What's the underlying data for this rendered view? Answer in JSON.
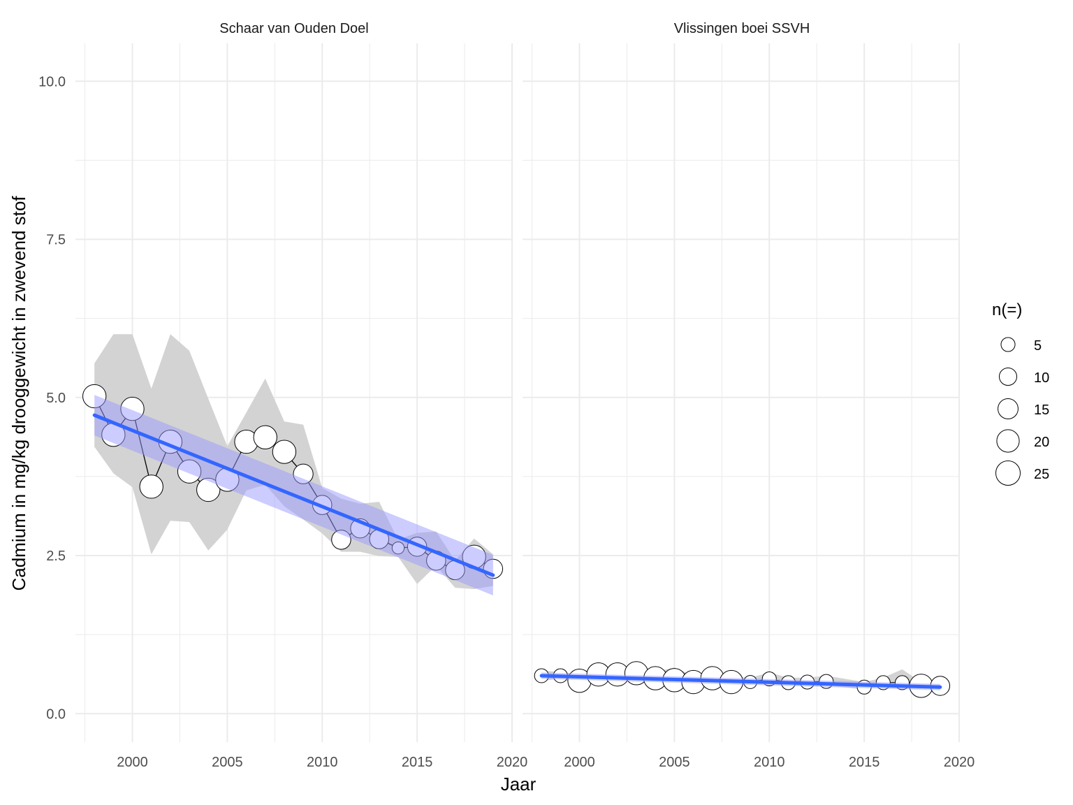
{
  "chart_data": {
    "type": "scatter",
    "xlabel": "Jaar",
    "ylabel": "Cadmium in mg/kg drooggewicht in zwevend stof",
    "xlim": [
      1997,
      2020
    ],
    "ylim": [
      -0.45,
      10.6
    ],
    "x_ticks": [
      "2000",
      "2005",
      "2010",
      "2015",
      "2020"
    ],
    "y_ticks": [
      "0.0",
      "2.5",
      "5.0",
      "7.5",
      "10.0"
    ],
    "grid": true,
    "colors": {
      "trend": "#3366ff",
      "trend_band": "#9999ff",
      "range_band": "#d3d3d3",
      "point_fill": "#ffffff",
      "point_stroke": "#000000",
      "line": "#000000",
      "grid": "#ebebeb"
    },
    "legend": {
      "title": "n(=)",
      "position": "right",
      "items": [
        {
          "label": "5",
          "n": 5
        },
        {
          "label": "10",
          "n": 10
        },
        {
          "label": "15",
          "n": 15
        },
        {
          "label": "20",
          "n": 20
        },
        {
          "label": "25",
          "n": 25
        }
      ]
    },
    "panels": [
      {
        "title": "Schaar van Ouden Doel",
        "x": [
          1998,
          1999,
          2000,
          2001,
          2002,
          2003,
          2004,
          2005,
          2006,
          2007,
          2008,
          2009,
          2010,
          2011,
          2012,
          2013,
          2014,
          2015,
          2016,
          2017,
          2018,
          2019
        ],
        "y": [
          5.02,
          4.41,
          4.82,
          3.59,
          4.3,
          3.83,
          3.54,
          3.7,
          4.3,
          4.37,
          4.14,
          3.79,
          3.3,
          2.75,
          2.93,
          2.76,
          2.62,
          2.64,
          2.42,
          2.27,
          2.48,
          2.29
        ],
        "n": [
          22,
          22,
          22,
          22,
          22,
          22,
          22,
          22,
          22,
          22,
          22,
          14,
          13,
          13,
          13,
          13,
          3,
          13,
          13,
          13,
          22,
          13
        ],
        "band_low": [
          4.22,
          3.8,
          3.58,
          2.52,
          3.05,
          3.03,
          2.58,
          2.91,
          3.53,
          3.62,
          3.28,
          3.07,
          2.85,
          2.56,
          2.56,
          2.49,
          2.48,
          2.05,
          2.34,
          1.99,
          1.97,
          2.02
        ],
        "band_high": [
          5.54,
          6.0,
          6.0,
          5.14,
          6.0,
          5.74,
          4.98,
          4.23,
          4.76,
          5.3,
          4.62,
          4.57,
          3.57,
          3.4,
          3.32,
          3.35,
          2.75,
          2.86,
          2.88,
          2.42,
          2.77,
          2.52
        ],
        "trend_start": [
          1998,
          4.72
        ],
        "trend_end": [
          2019,
          2.19
        ],
        "trend_se": 0.32
      },
      {
        "title": "Vlissingen boei SSVH",
        "x": [
          1998,
          1999,
          2000,
          2001,
          2002,
          2003,
          2004,
          2005,
          2006,
          2007,
          2008,
          2009,
          2010,
          2011,
          2012,
          2013,
          2015,
          2016,
          2017,
          2018,
          2019
        ],
        "y": [
          0.6,
          0.6,
          0.52,
          0.62,
          0.62,
          0.64,
          0.56,
          0.53,
          0.5,
          0.56,
          0.5,
          0.5,
          0.55,
          0.49,
          0.5,
          0.51,
          0.42,
          0.49,
          0.49,
          0.44,
          0.44
        ],
        "n": [
          5,
          5,
          22,
          22,
          22,
          22,
          22,
          22,
          22,
          22,
          22,
          4,
          5,
          5,
          5,
          5,
          5,
          5,
          5,
          22,
          13
        ],
        "band_low": [
          0.52,
          0.55,
          0.46,
          0.55,
          0.55,
          0.56,
          0.5,
          0.47,
          0.44,
          0.5,
          0.45,
          0.46,
          0.48,
          0.44,
          0.45,
          0.45,
          0.38,
          0.44,
          0.41,
          0.39,
          0.39
        ],
        "band_high": [
          0.68,
          0.66,
          0.62,
          0.7,
          0.7,
          0.74,
          0.66,
          0.73,
          0.6,
          0.66,
          0.58,
          0.57,
          0.65,
          0.57,
          0.57,
          0.6,
          0.5,
          0.57,
          0.7,
          0.5,
          0.52
        ],
        "trend_start": [
          1998,
          0.6
        ],
        "trend_end": [
          2019,
          0.42
        ],
        "trend_se": 0.05
      }
    ]
  }
}
